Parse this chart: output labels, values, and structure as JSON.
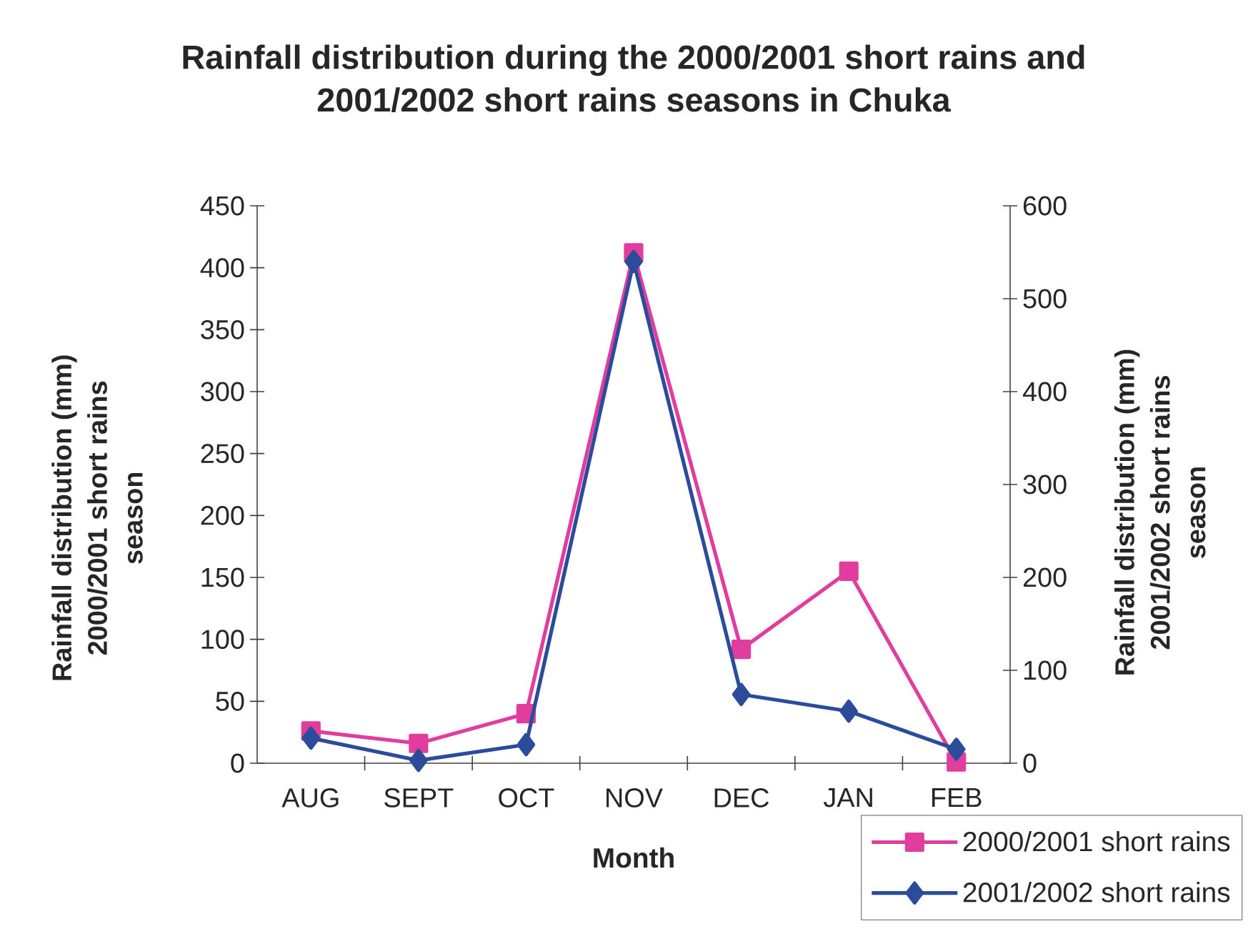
{
  "chart_data": {
    "type": "line",
    "title": "Rainfall distribution during the 2000/2001 short rains and 2001/2002 short rains seasons in Chuka",
    "xlabel": "Month",
    "ylabel": "Rainfall distribution (mm) 2000/2001 short rains season",
    "y2label": "Rainfall distribution (mm) 2001/2002 short rains season",
    "categories": [
      "AUG",
      "SEPT",
      "OCT",
      "NOV",
      "DEC",
      "JAN",
      "FEB"
    ],
    "series": [
      {
        "name": "2000/2001 short rains",
        "color": "#e13d9e",
        "marker": "square",
        "values": [
          26,
          16,
          40,
          412,
          92,
          155,
          1
        ]
      },
      {
        "name": "2001/2002 short rains",
        "color": "#2b4c9b",
        "marker": "diamond",
        "axis": "y2",
        "values": [
          27,
          3,
          20,
          540,
          74,
          56,
          15
        ]
      }
    ],
    "ylim": [
      0,
      450
    ],
    "yticks": [
      0,
      50,
      100,
      150,
      200,
      250,
      300,
      350,
      400,
      450
    ],
    "y2lim": [
      0,
      600
    ],
    "y2ticks": [
      0,
      100,
      200,
      300,
      400,
      500,
      600
    ],
    "legend": "bottom right",
    "grid": false,
    "line_style": "solid"
  }
}
